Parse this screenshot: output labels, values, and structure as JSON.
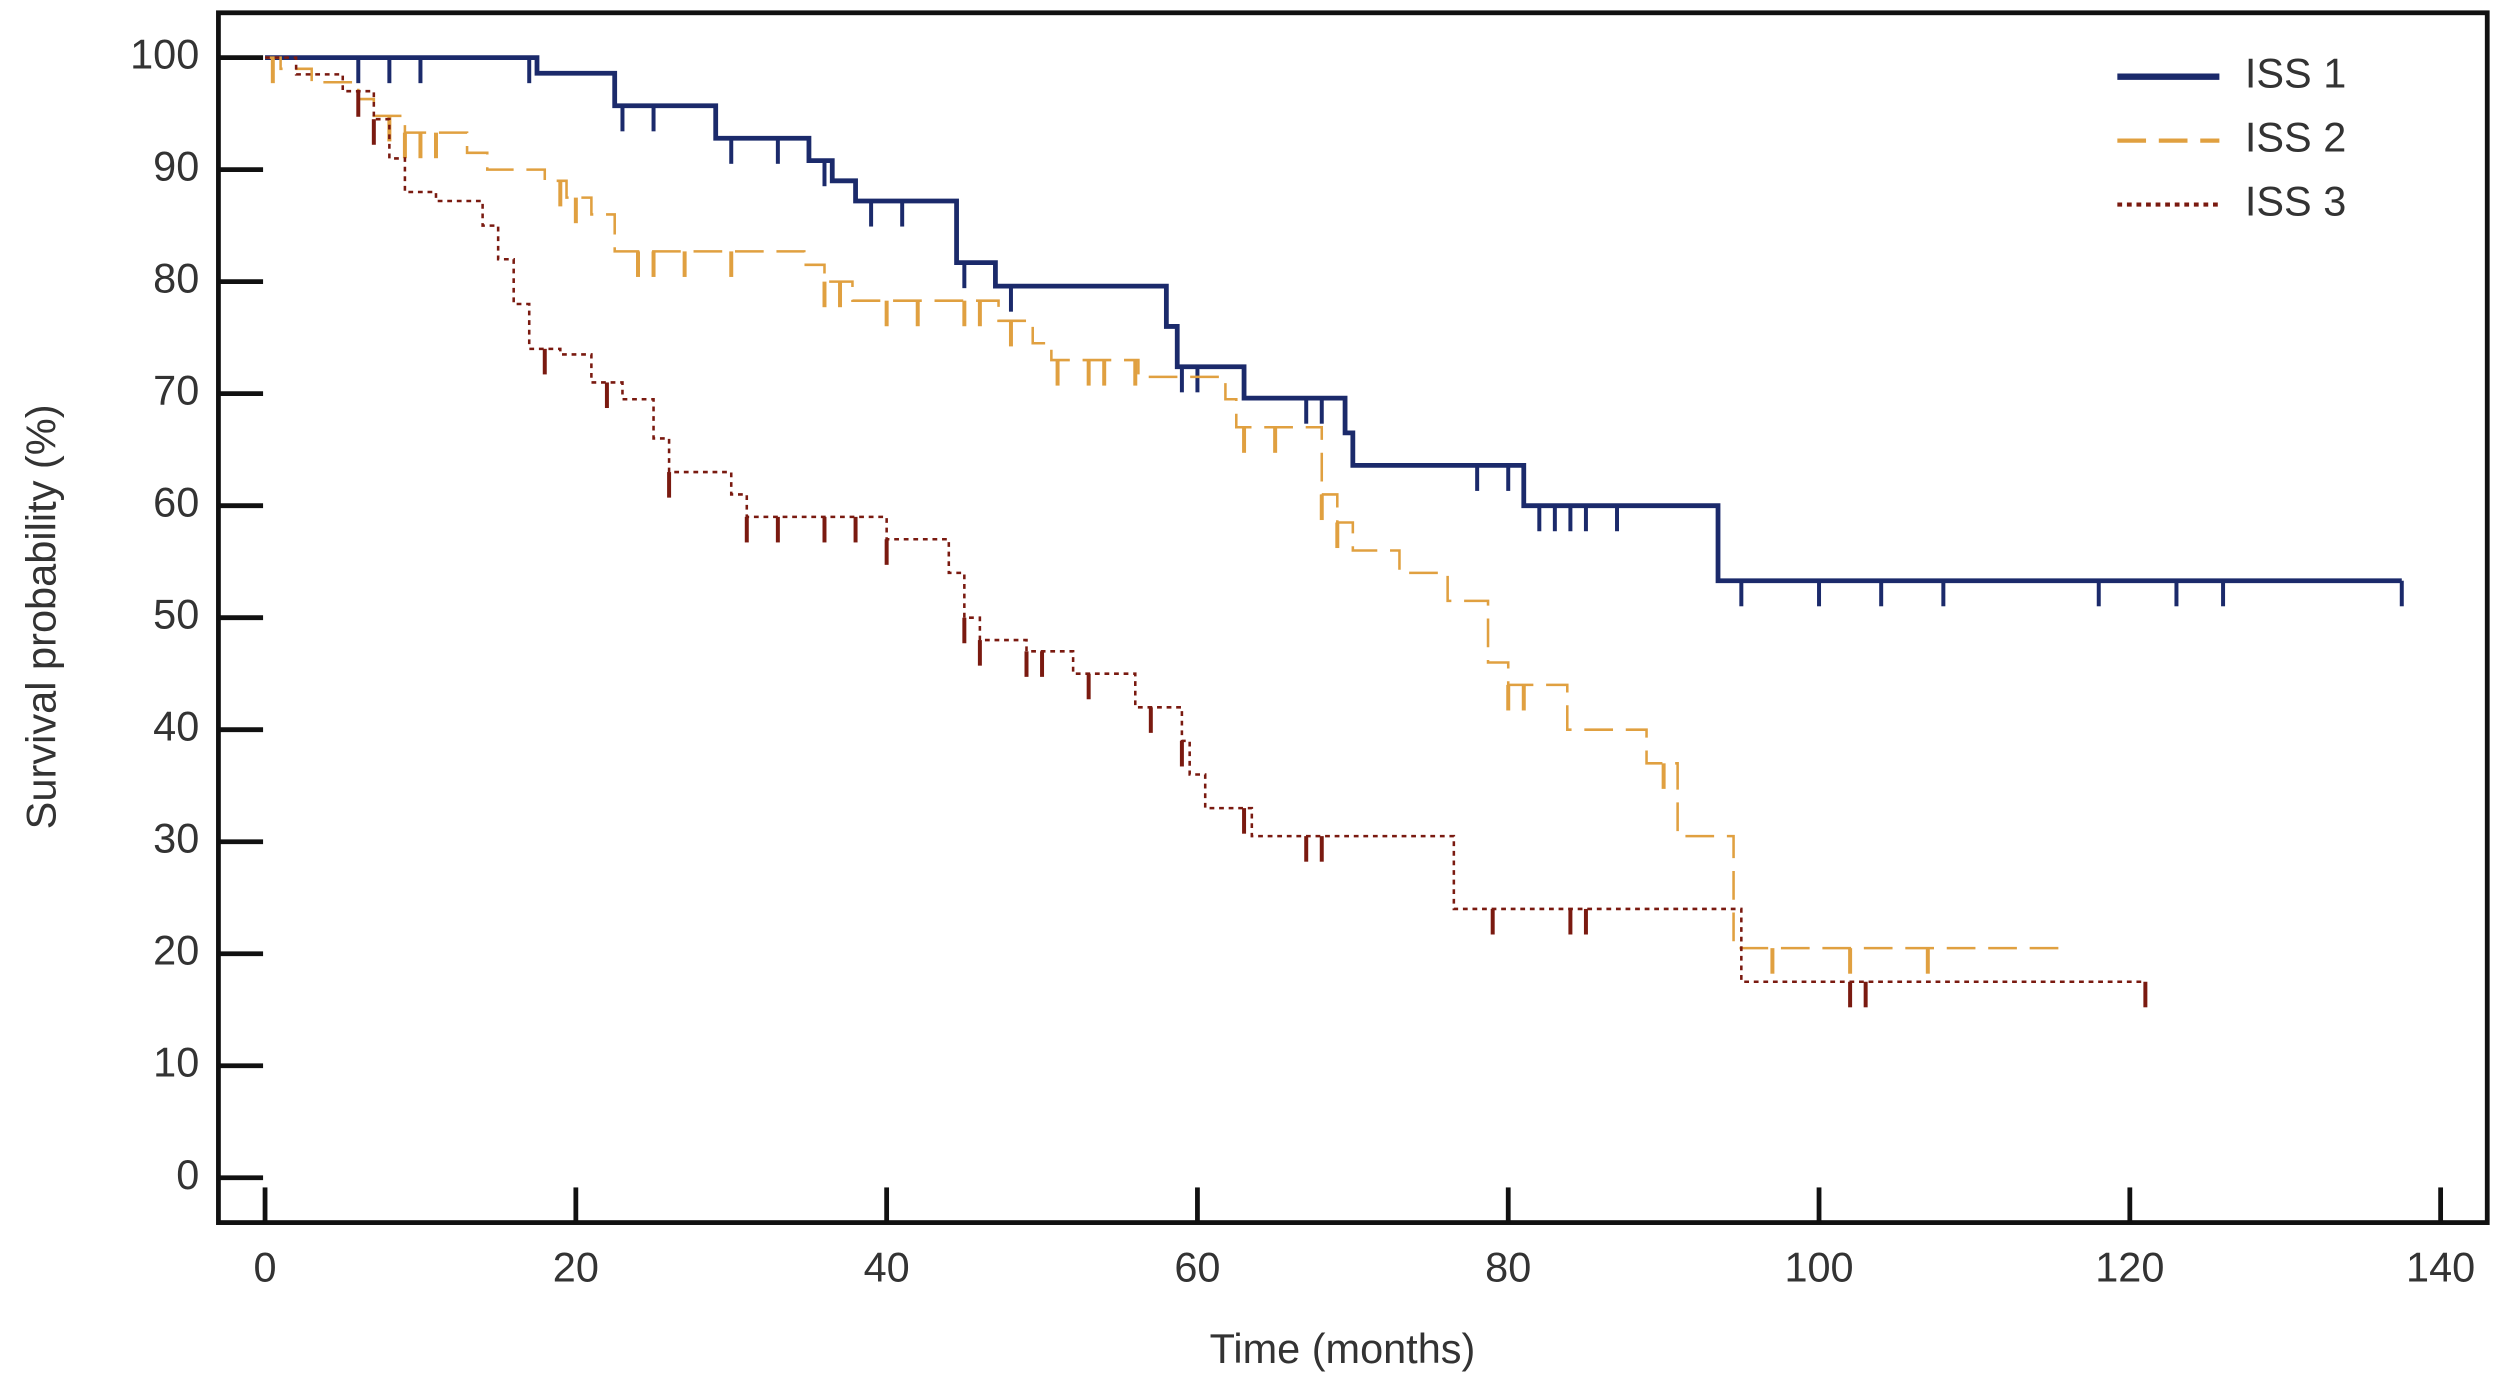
{
  "chart_data": {
    "type": "step",
    "x_label": "Time (months)",
    "y_label": "Survival probability (%)",
    "xlim": [
      -3,
      143
    ],
    "ylim": [
      -4,
      104
    ],
    "xticks": [
      0,
      20,
      40,
      60,
      80,
      100,
      120,
      140
    ],
    "yticks": [
      0,
      10,
      20,
      30,
      40,
      50,
      60,
      70,
      80,
      90,
      100
    ],
    "legend": "upper right",
    "series": [
      {
        "name": "ISS 1",
        "color": "#1b2a6b",
        "style": "solid",
        "x": [
          0,
          17.5,
          22.5,
          29,
          35,
          36.5,
          38,
          44.5,
          47,
          58,
          58.7,
          63,
          69.5,
          70,
          81,
          93.5,
          137.5
        ],
        "values": [
          100,
          98.6,
          95.7,
          92.8,
          90.8,
          89,
          87.2,
          81.7,
          79.6,
          76,
          72.4,
          69.6,
          66.5,
          63.6,
          60,
          53.3,
          53.3
        ],
        "censored": [
          6,
          8,
          10,
          17,
          23,
          25,
          30,
          33,
          36,
          39,
          41,
          45,
          48,
          59,
          60,
          67,
          68,
          78,
          80,
          82,
          83,
          84,
          85,
          87,
          95,
          100,
          104,
          108,
          118,
          123,
          126,
          137.5
        ]
      },
      {
        "name": "ISS 2",
        "color": "#e0a040",
        "style": "dashed",
        "x": [
          0,
          1,
          3,
          6,
          7,
          9,
          13,
          14.3,
          18,
          19.4,
          21,
          22.5,
          34.7,
          36,
          37.8,
          47.2,
          49.4,
          50.6,
          56.2,
          61.8,
          62.5,
          68,
          69,
          70,
          73,
          76.1,
          78.7,
          80,
          83.8,
          88.9,
          90.9,
          94.5,
          115.5
        ],
        "values": [
          100,
          99,
          97.8,
          96.3,
          94.8,
          93.3,
          91.5,
          90,
          89,
          87.5,
          86,
          82.7,
          81.5,
          80,
          78.3,
          76.5,
          74.5,
          73,
          71.5,
          69.5,
          67,
          61,
          58.5,
          56,
          54,
          51.5,
          46,
          44,
          40,
          37,
          30.5,
          20.5,
          20.5
        ],
        "censored": [
          0.5,
          8,
          9,
          10,
          11,
          19,
          20,
          24,
          25,
          27,
          30,
          36,
          37,
          40,
          42,
          45,
          46,
          48,
          51,
          53,
          54,
          56,
          63,
          65,
          68,
          69,
          80,
          81,
          90,
          97,
          102,
          107
        ]
      },
      {
        "name": "ISS 3",
        "color": "#7a1a10",
        "style": "dotted",
        "x": [
          0,
          2,
          5,
          7,
          8,
          9,
          11,
          14,
          15,
          16,
          17,
          19,
          21,
          23,
          25,
          26,
          30,
          31,
          40,
          44,
          45,
          46,
          49,
          52,
          56,
          59,
          59.5,
          60.5,
          63.5,
          76.5,
          95,
          121
        ],
        "values": [
          100,
          98.5,
          97,
          94.5,
          91,
          88,
          87.2,
          85,
          82,
          78,
          74,
          73.5,
          71,
          69.5,
          66,
          63,
          61,
          59,
          57,
          54,
          50,
          48,
          47,
          45,
          42,
          39,
          36,
          33,
          30.5,
          24,
          17.5,
          17.5
        ],
        "censored": [
          6,
          7,
          18,
          22,
          26,
          31,
          33,
          36,
          38,
          40,
          45,
          46,
          49,
          50,
          53,
          57,
          59,
          63,
          67,
          68,
          79,
          84,
          85,
          102,
          103,
          121
        ]
      }
    ]
  }
}
